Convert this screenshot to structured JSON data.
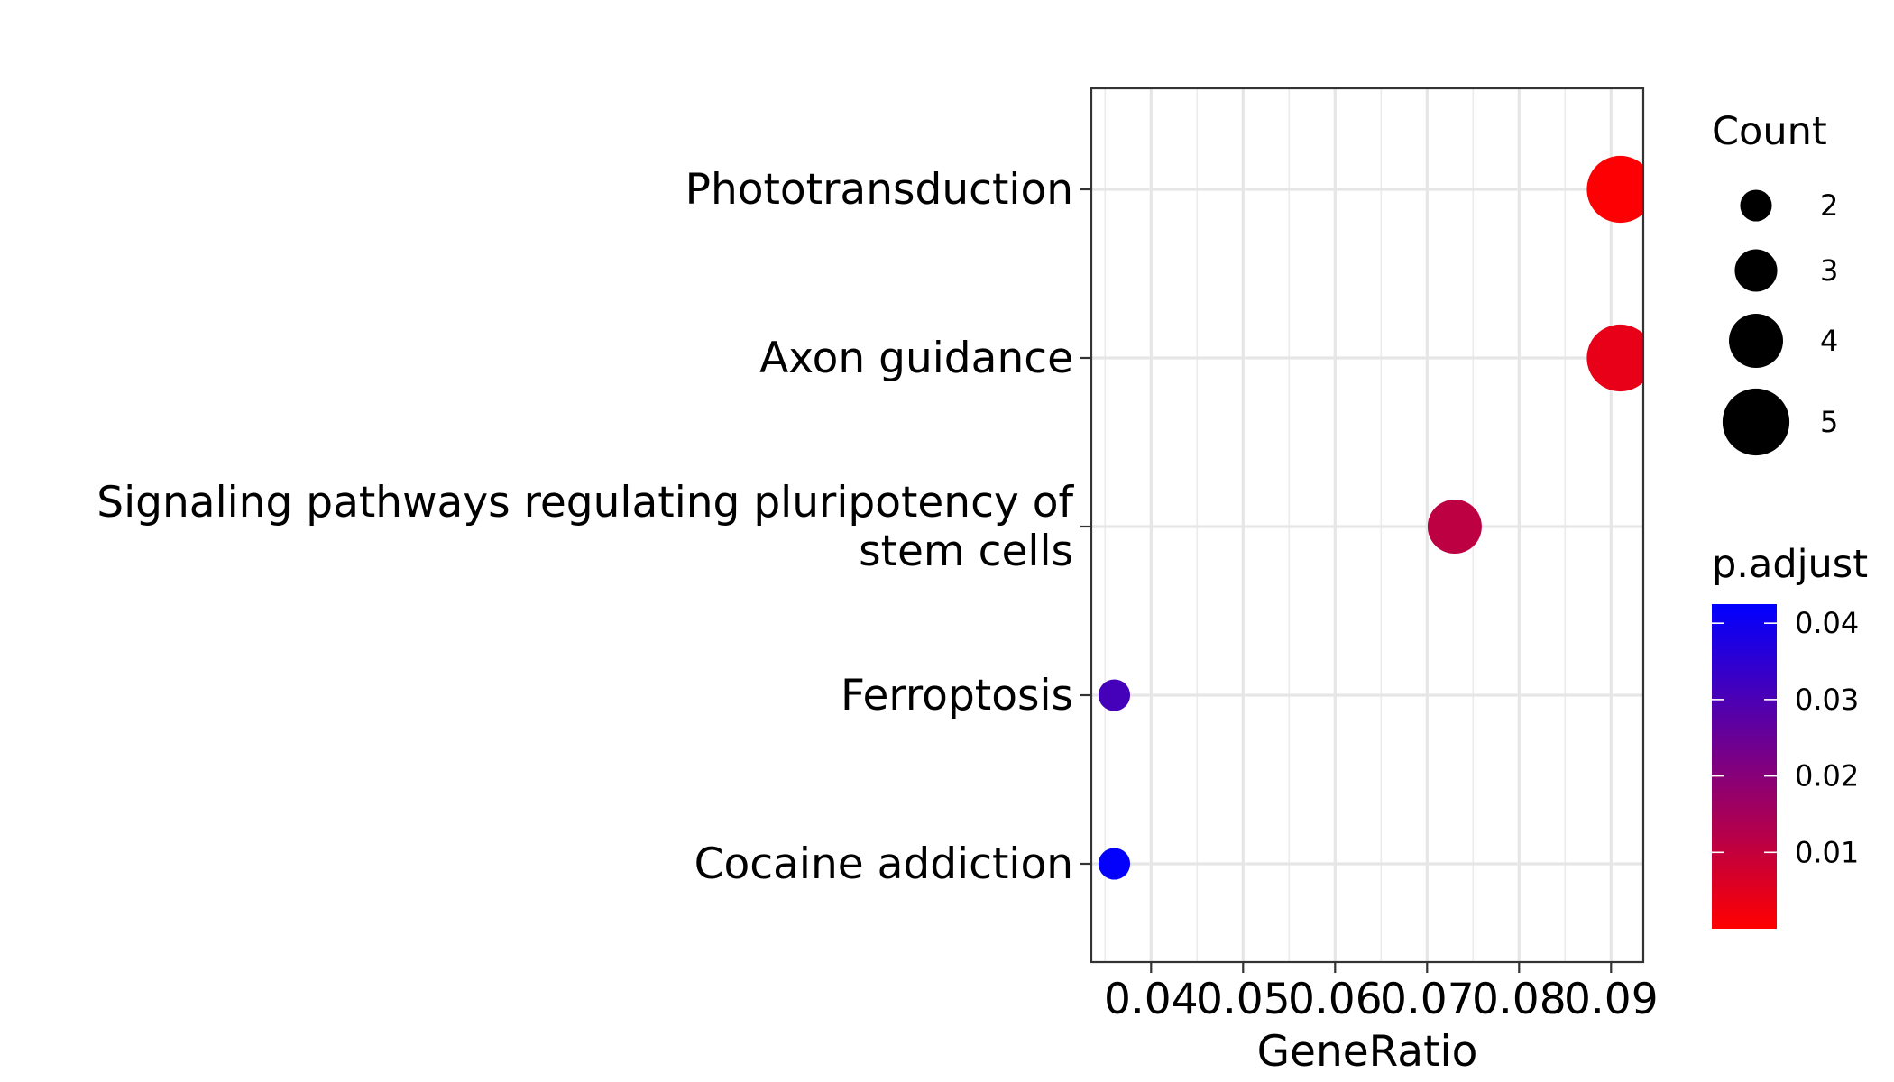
{
  "chart_data": {
    "type": "scatter",
    "title": "",
    "xlabel": "GeneRatio",
    "ylabel": "",
    "xlim": [
      0.0335,
      0.0935
    ],
    "xticks": [
      0.04,
      0.05,
      0.06,
      0.07,
      0.08,
      0.09
    ],
    "xtick_labels": [
      "0.04",
      "0.05",
      "0.06",
      "0.07",
      "0.08",
      "0.09"
    ],
    "grid": true,
    "categories": [
      [
        "Phototransduction"
      ],
      [
        "Axon guidance"
      ],
      [
        "Signaling pathways regulating pluripotency of",
        "stem cells"
      ],
      [
        "Ferroptosis"
      ],
      [
        "Cocaine addiction"
      ]
    ],
    "points": [
      {
        "category_index": 0,
        "gene_ratio": 0.091,
        "count": 5,
        "p_adjust": 0.0005
      },
      {
        "category_index": 1,
        "gene_ratio": 0.091,
        "count": 5,
        "p_adjust": 0.004
      },
      {
        "category_index": 2,
        "gene_ratio": 0.073,
        "count": 4,
        "p_adjust": 0.011
      },
      {
        "category_index": 3,
        "gene_ratio": 0.036,
        "count": 2,
        "p_adjust": 0.031
      },
      {
        "category_index": 4,
        "gene_ratio": 0.036,
        "count": 2,
        "p_adjust": 0.042
      }
    ],
    "size_legend": {
      "title": "Count",
      "values": [
        2,
        3,
        4,
        5
      ],
      "labels": [
        "2",
        "3",
        "4",
        "5"
      ]
    },
    "color_legend": {
      "title": "p.adjust",
      "range": [
        0.0,
        0.0425
      ],
      "low_color": "#FF0000",
      "high_color": "#0000FF",
      "ticks": [
        0.01,
        0.02,
        0.03,
        0.04
      ],
      "tick_labels": [
        "0.01",
        "0.02",
        "0.03",
        "0.04"
      ]
    },
    "legend_position": "right"
  }
}
